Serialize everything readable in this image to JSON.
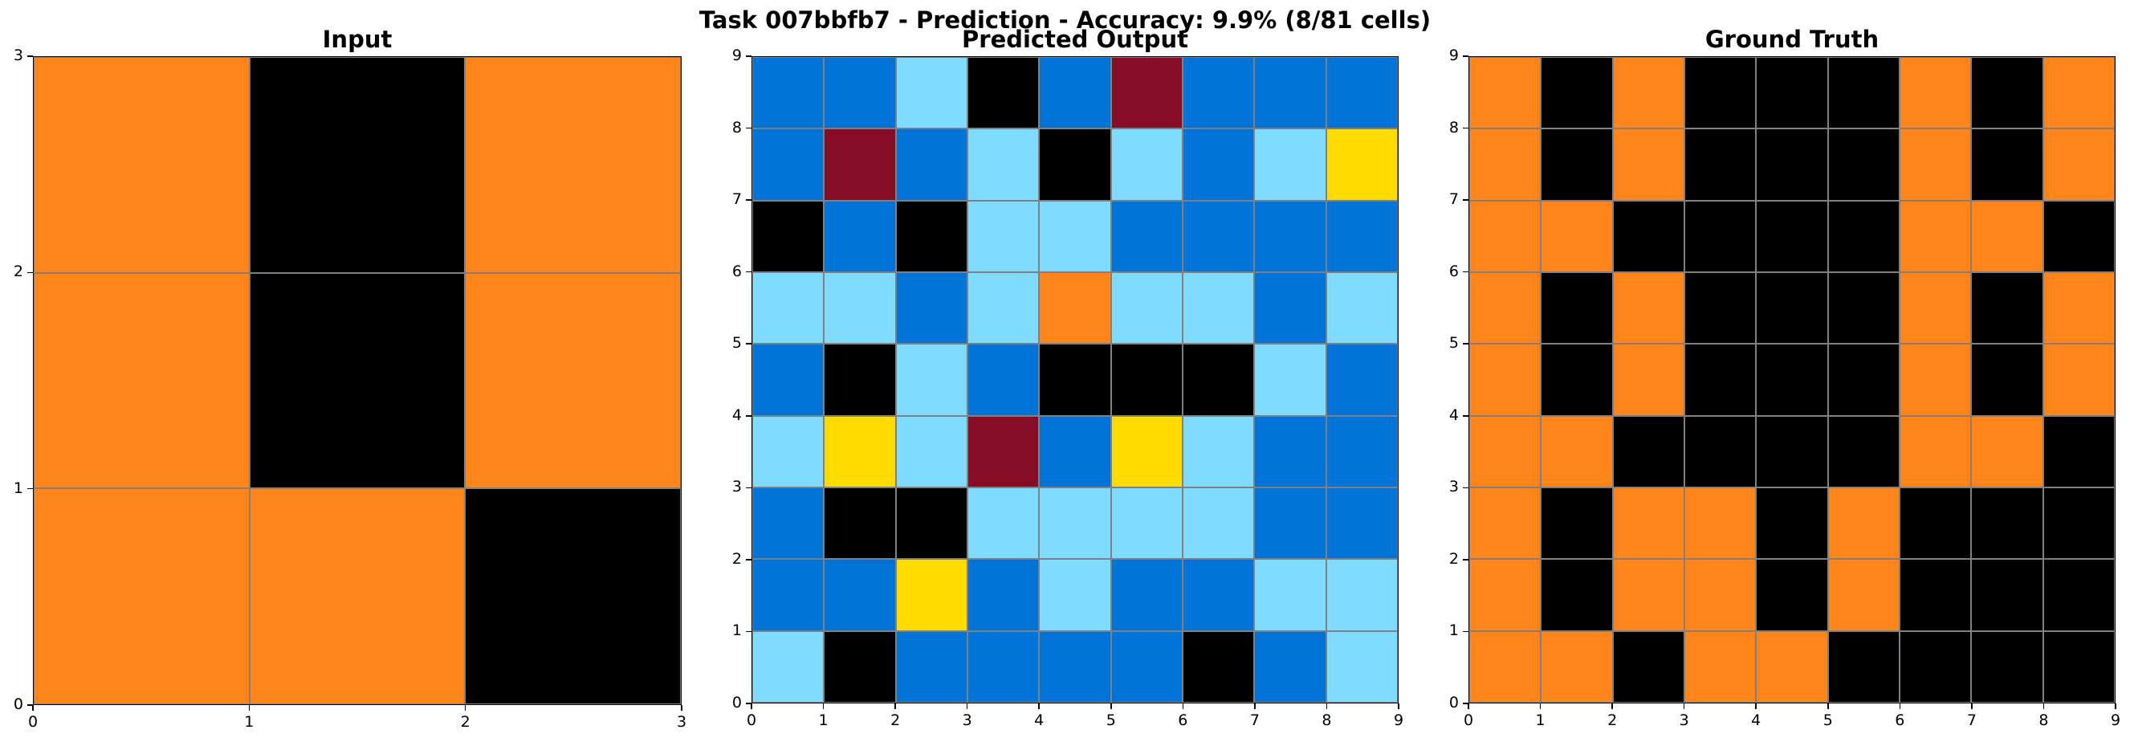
{
  "title": "Task 007bbfb7 - Prediction - Accuracy: 9.9% (8/81 cells)",
  "palette": {
    "0": "#000000",
    "1": "#0074d9",
    "4": "#ffdc00",
    "7": "#ff851b",
    "8": "#7fdbff",
    "9": "#870c25"
  },
  "panels": [
    {
      "id": "input",
      "title": "Input",
      "size": 3,
      "ticks": [
        "0",
        "1",
        "2",
        "3"
      ],
      "grid": [
        [
          7,
          0,
          7
        ],
        [
          7,
          0,
          7
        ],
        [
          7,
          7,
          0
        ]
      ]
    },
    {
      "id": "predicted",
      "title": "Predicted Output",
      "size": 9,
      "ticks": [
        "0",
        "1",
        "2",
        "3",
        "4",
        "5",
        "6",
        "7",
        "8",
        "9"
      ],
      "grid": [
        [
          1,
          1,
          8,
          0,
          1,
          9,
          1,
          1,
          1
        ],
        [
          1,
          9,
          1,
          8,
          0,
          8,
          1,
          8,
          4
        ],
        [
          0,
          1,
          0,
          8,
          8,
          1,
          1,
          1,
          1
        ],
        [
          8,
          8,
          1,
          8,
          7,
          8,
          8,
          1,
          8
        ],
        [
          1,
          0,
          8,
          1,
          0,
          0,
          0,
          8,
          1
        ],
        [
          8,
          4,
          8,
          9,
          1,
          4,
          8,
          1,
          1
        ],
        [
          1,
          0,
          0,
          8,
          8,
          8,
          8,
          1,
          1
        ],
        [
          1,
          1,
          4,
          1,
          8,
          1,
          1,
          8,
          8
        ],
        [
          8,
          0,
          1,
          1,
          1,
          1,
          0,
          1,
          8
        ]
      ]
    },
    {
      "id": "ground-truth",
      "title": "Ground Truth",
      "size": 9,
      "ticks": [
        "0",
        "1",
        "2",
        "3",
        "4",
        "5",
        "6",
        "7",
        "8",
        "9"
      ],
      "grid": [
        [
          7,
          0,
          7,
          0,
          0,
          0,
          7,
          0,
          7
        ],
        [
          7,
          0,
          7,
          0,
          0,
          0,
          7,
          0,
          7
        ],
        [
          7,
          7,
          0,
          0,
          0,
          0,
          7,
          7,
          0
        ],
        [
          7,
          0,
          7,
          0,
          0,
          0,
          7,
          0,
          7
        ],
        [
          7,
          0,
          7,
          0,
          0,
          0,
          7,
          0,
          7
        ],
        [
          7,
          7,
          0,
          0,
          0,
          0,
          7,
          7,
          0
        ],
        [
          7,
          0,
          7,
          7,
          0,
          7,
          0,
          0,
          0
        ],
        [
          7,
          0,
          7,
          7,
          0,
          7,
          0,
          0,
          0
        ],
        [
          7,
          7,
          0,
          7,
          7,
          0,
          0,
          0,
          0
        ]
      ]
    }
  ]
}
